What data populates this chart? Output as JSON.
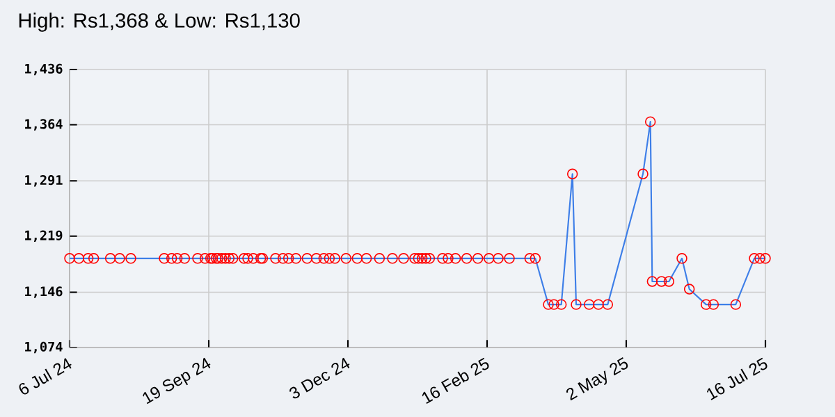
{
  "chart_data": {
    "type": "line",
    "title": "High: Rs1,368 & Low: Rs1,130",
    "x": [
      "2024-07-06",
      "2024-07-11",
      "2024-07-16",
      "2024-07-19",
      "2024-07-28",
      "2024-08-02",
      "2024-08-08",
      "2024-08-26",
      "2024-08-30",
      "2024-09-02",
      "2024-09-06",
      "2024-09-13",
      "2024-09-17",
      "2024-09-20",
      "2024-09-21",
      "2024-09-23",
      "2024-09-24",
      "2024-09-26",
      "2024-09-28",
      "2024-09-30",
      "2024-10-02",
      "2024-10-08",
      "2024-10-10",
      "2024-10-13",
      "2024-10-17",
      "2024-10-18",
      "2024-10-25",
      "2024-10-29",
      "2024-11-01",
      "2024-11-05",
      "2024-11-11",
      "2024-11-16",
      "2024-11-20",
      "2024-11-23",
      "2024-11-26",
      "2024-12-02",
      "2024-12-08",
      "2024-12-13",
      "2024-12-20",
      "2024-12-27",
      "2025-01-02",
      "2025-01-08",
      "2025-01-10",
      "2025-01-12",
      "2025-01-14",
      "2025-01-16",
      "2025-01-23",
      "2025-01-26",
      "2025-01-30",
      "2025-02-05",
      "2025-02-11",
      "2025-02-17",
      "2025-02-22",
      "2025-02-28",
      "2025-03-11",
      "2025-03-14",
      "2025-03-21",
      "2025-03-24",
      "2025-03-28",
      "2025-04-03",
      "2025-04-05",
      "2025-04-12",
      "2025-04-17",
      "2025-04-22",
      "2025-05-11",
      "2025-05-15",
      "2025-05-16",
      "2025-05-21",
      "2025-05-25",
      "2025-06-01",
      "2025-06-05",
      "2025-06-14",
      "2025-06-18",
      "2025-06-30",
      "2025-07-10",
      "2025-07-13",
      "2025-07-16"
    ],
    "series": [
      {
        "color": "#3d7ee8",
        "values": [
          1190,
          1190,
          1190,
          1190,
          1190,
          1190,
          1190,
          1190,
          1190,
          1190,
          1190,
          1190,
          1190,
          1190,
          1190,
          1190,
          1190,
          1190,
          1190,
          1190,
          1190,
          1190,
          1190,
          1190,
          1190,
          1190,
          1190,
          1190,
          1190,
          1190,
          1190,
          1190,
          1190,
          1190,
          1190,
          1190,
          1190,
          1190,
          1190,
          1190,
          1190,
          1190,
          1190,
          1190,
          1190,
          1190,
          1190,
          1190,
          1190,
          1190,
          1190,
          1190,
          1190,
          1190,
          1190,
          1190,
          1130,
          1130,
          1130,
          1300,
          1130,
          1130,
          1130,
          1130,
          1300,
          1368,
          1160,
          1160,
          1160,
          1190,
          1150,
          1130,
          1130,
          1130,
          1190,
          1190,
          1190
        ]
      }
    ],
    "xlim": [
      "2024-07-06",
      "2025-07-16"
    ],
    "xticks": [
      {
        "value": "2024-07-06",
        "label": "6 Jul 24"
      },
      {
        "value": "2024-09-19",
        "label": "19 Sep 24"
      },
      {
        "value": "2024-12-03",
        "label": "3 Dec 24"
      },
      {
        "value": "2025-02-16",
        "label": "16 Feb 25"
      },
      {
        "value": "2025-05-02",
        "label": "2 May 25"
      },
      {
        "value": "2025-07-16",
        "label": "16 Jul 25"
      }
    ],
    "ylim": [
      1074,
      1436
    ],
    "yticks": [
      {
        "value": 1074,
        "label": "1,074"
      },
      {
        "value": 1146,
        "label": "1,146"
      },
      {
        "value": 1219,
        "label": "1,219"
      },
      {
        "value": 1291,
        "label": "1,291"
      },
      {
        "value": 1364,
        "label": "1,364"
      },
      {
        "value": 1436,
        "label": "1,436"
      }
    ],
    "grid": true,
    "marker": "circle",
    "line_style": "solid"
  }
}
